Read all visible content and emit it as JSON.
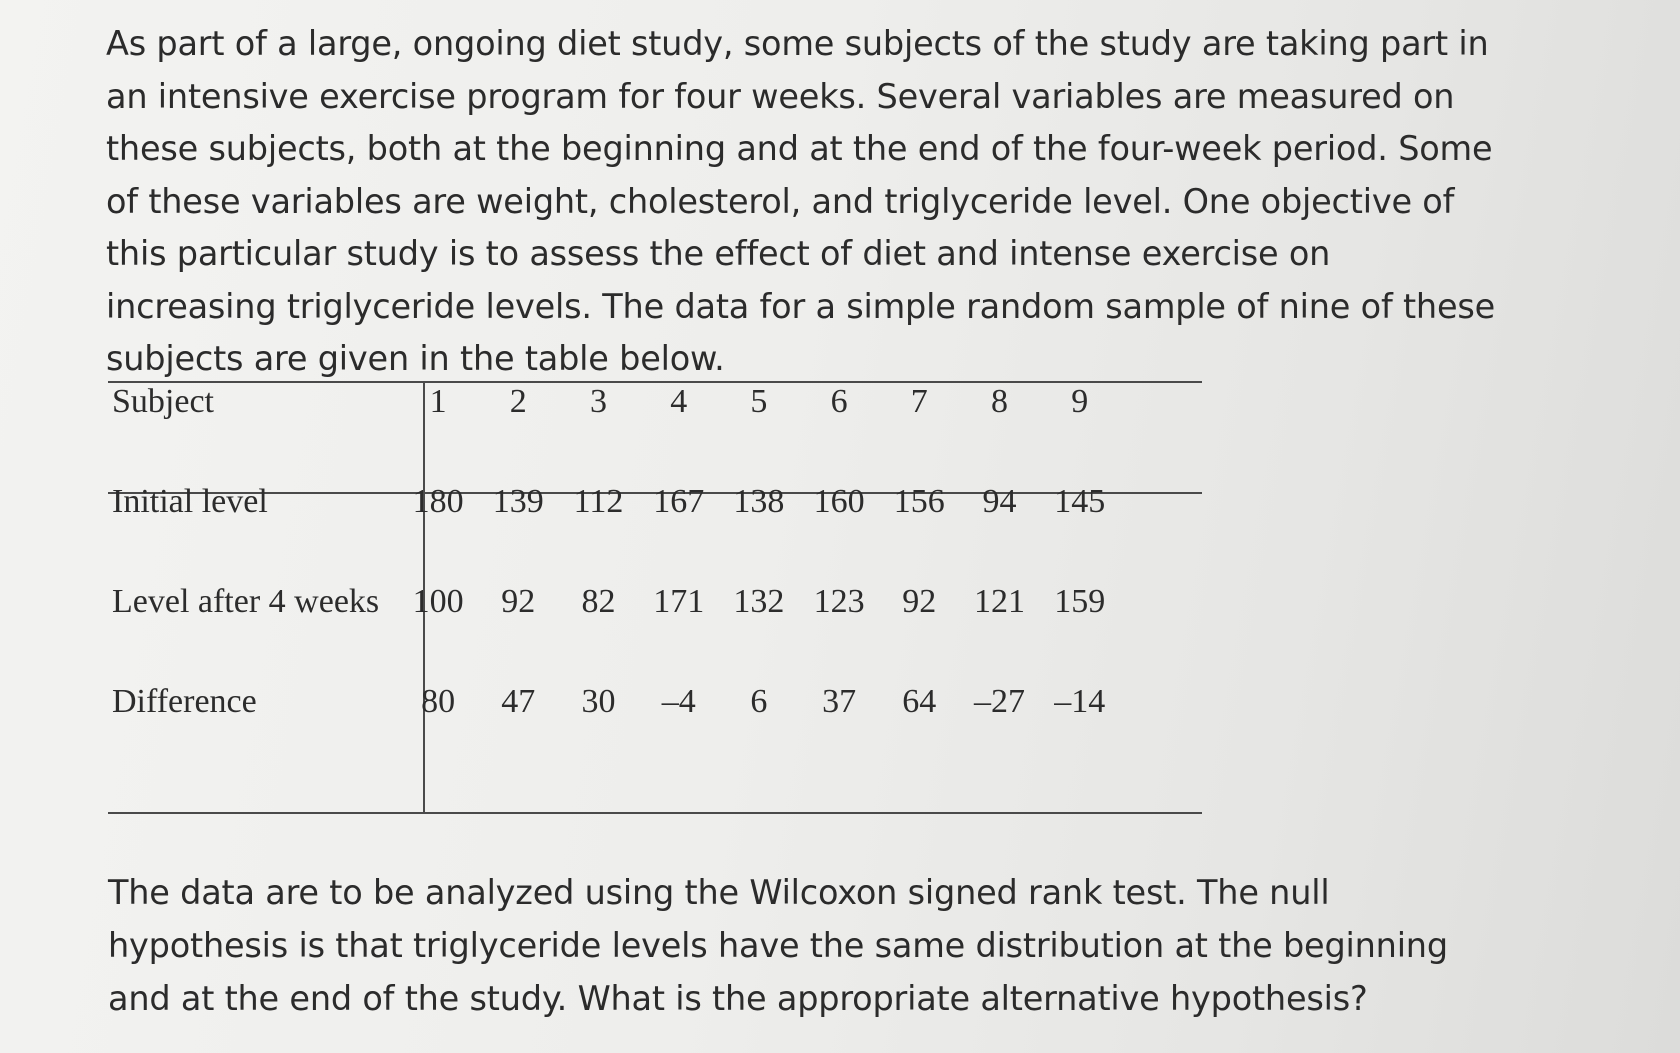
{
  "intro_text": "As part of a large, ongoing diet study, some subjects of the study are taking part in an intensive exercise program for four weeks. Several variables are measured on these subjects, both at the beginning and at the end of the four-week period. Some of these variables are weight, cholesterol, and triglyceride level. One objective of this particular study is to assess the effect of diet and intense exercise on increasing triglyceride levels. The data for a simple random sample of nine of these subjects are given in the table below.",
  "table": {
    "rows": [
      {
        "label": "Subject",
        "values": [
          "1",
          "2",
          "3",
          "4",
          "5",
          "6",
          "7",
          "8",
          "9"
        ]
      },
      {
        "label": "Initial level",
        "values": [
          "180",
          "139",
          "112",
          "167",
          "138",
          "160",
          "156",
          "94",
          "145"
        ]
      },
      {
        "label": "Level after 4 weeks",
        "values": [
          "100",
          "92",
          "82",
          "171",
          "132",
          "123",
          "92",
          "121",
          "159"
        ]
      },
      {
        "label": "Difference",
        "values": [
          "80",
          "47",
          "30",
          "–4",
          "6",
          "37",
          "64",
          "–27",
          "–14"
        ]
      }
    ]
  },
  "question_text": "The data are to be analyzed using the Wilcoxon signed rank test. The null hypothesis is that triglyceride levels have the same distribution at the beginning and at the end of the study. What is the appropriate alternative hypothesis?"
}
